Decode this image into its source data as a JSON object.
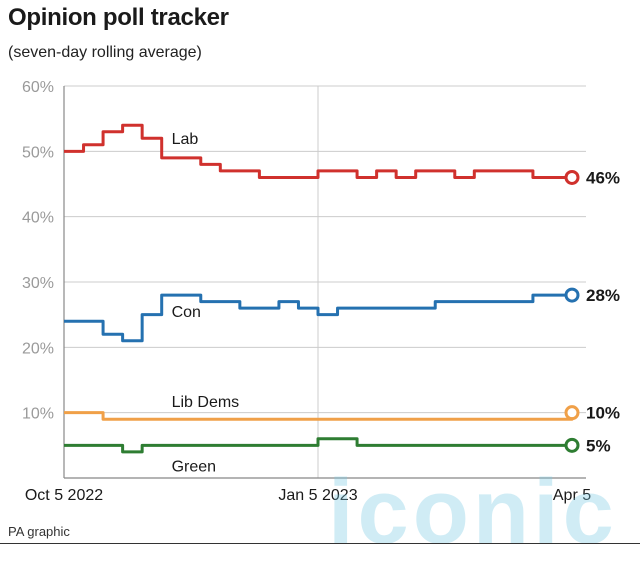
{
  "header": {
    "title": "Opinion poll tracker",
    "subtitle": "(seven-day rolling average)"
  },
  "footer": {
    "source": "PA graphic"
  },
  "watermark": {
    "text": "iconic"
  },
  "colors": {
    "Lab": "#d0312d",
    "Con": "#2571b0",
    "Lib Dems": "#f0a048",
    "Green": "#2e7d32",
    "grid": "#cccccc",
    "axis": "#888888"
  },
  "chart_data": {
    "type": "line",
    "title": "Opinion poll tracker",
    "subtitle": "(seven-day rolling average)",
    "xlabel": "",
    "ylabel": "",
    "ylim": [
      0,
      60
    ],
    "yticks": [
      "60%",
      "50%",
      "40%",
      "30%",
      "20%",
      "10%"
    ],
    "xticks": [
      "Oct 5 2022",
      "Jan 5 2023",
      "Apr 5"
    ],
    "grid": true,
    "legend": "inline labels",
    "x": [
      "Oct 5",
      "Oct 12",
      "Oct 19",
      "Oct 26",
      "Nov 2",
      "Nov 9",
      "Nov 16",
      "Nov 23",
      "Nov 30",
      "Dec 7",
      "Dec 14",
      "Dec 21",
      "Dec 28",
      "Jan 5",
      "Jan 12",
      "Jan 19",
      "Jan 26",
      "Feb 2",
      "Feb 9",
      "Feb 16",
      "Feb 23",
      "Mar 2",
      "Mar 9",
      "Mar 16",
      "Mar 23",
      "Mar 30",
      "Apr 5"
    ],
    "series": [
      {
        "name": "Lab",
        "end_label": "46%",
        "values": [
          50,
          51,
          53,
          54,
          52,
          49,
          49,
          48,
          47,
          47,
          46,
          46,
          46,
          47,
          47,
          46,
          47,
          46,
          47,
          47,
          46,
          47,
          47,
          47,
          46,
          46,
          46
        ]
      },
      {
        "name": "Con",
        "end_label": "28%",
        "values": [
          24,
          24,
          22,
          21,
          25,
          28,
          28,
          27,
          27,
          26,
          26,
          27,
          26,
          25,
          26,
          26,
          26,
          26,
          26,
          27,
          27,
          27,
          27,
          27,
          28,
          28,
          28
        ]
      },
      {
        "name": "Lib Dems",
        "end_label": "10%",
        "values": [
          10,
          10,
          9,
          9,
          9,
          9,
          9,
          9,
          9,
          9,
          9,
          9,
          9,
          9,
          9,
          9,
          9,
          9,
          9,
          9,
          9,
          9,
          9,
          9,
          9,
          9,
          10
        ]
      },
      {
        "name": "Green",
        "end_label": "5%",
        "values": [
          5,
          5,
          5,
          4,
          5,
          5,
          5,
          5,
          5,
          5,
          5,
          5,
          5,
          6,
          6,
          5,
          5,
          5,
          5,
          5,
          5,
          5,
          5,
          5,
          5,
          5,
          5
        ]
      }
    ]
  }
}
